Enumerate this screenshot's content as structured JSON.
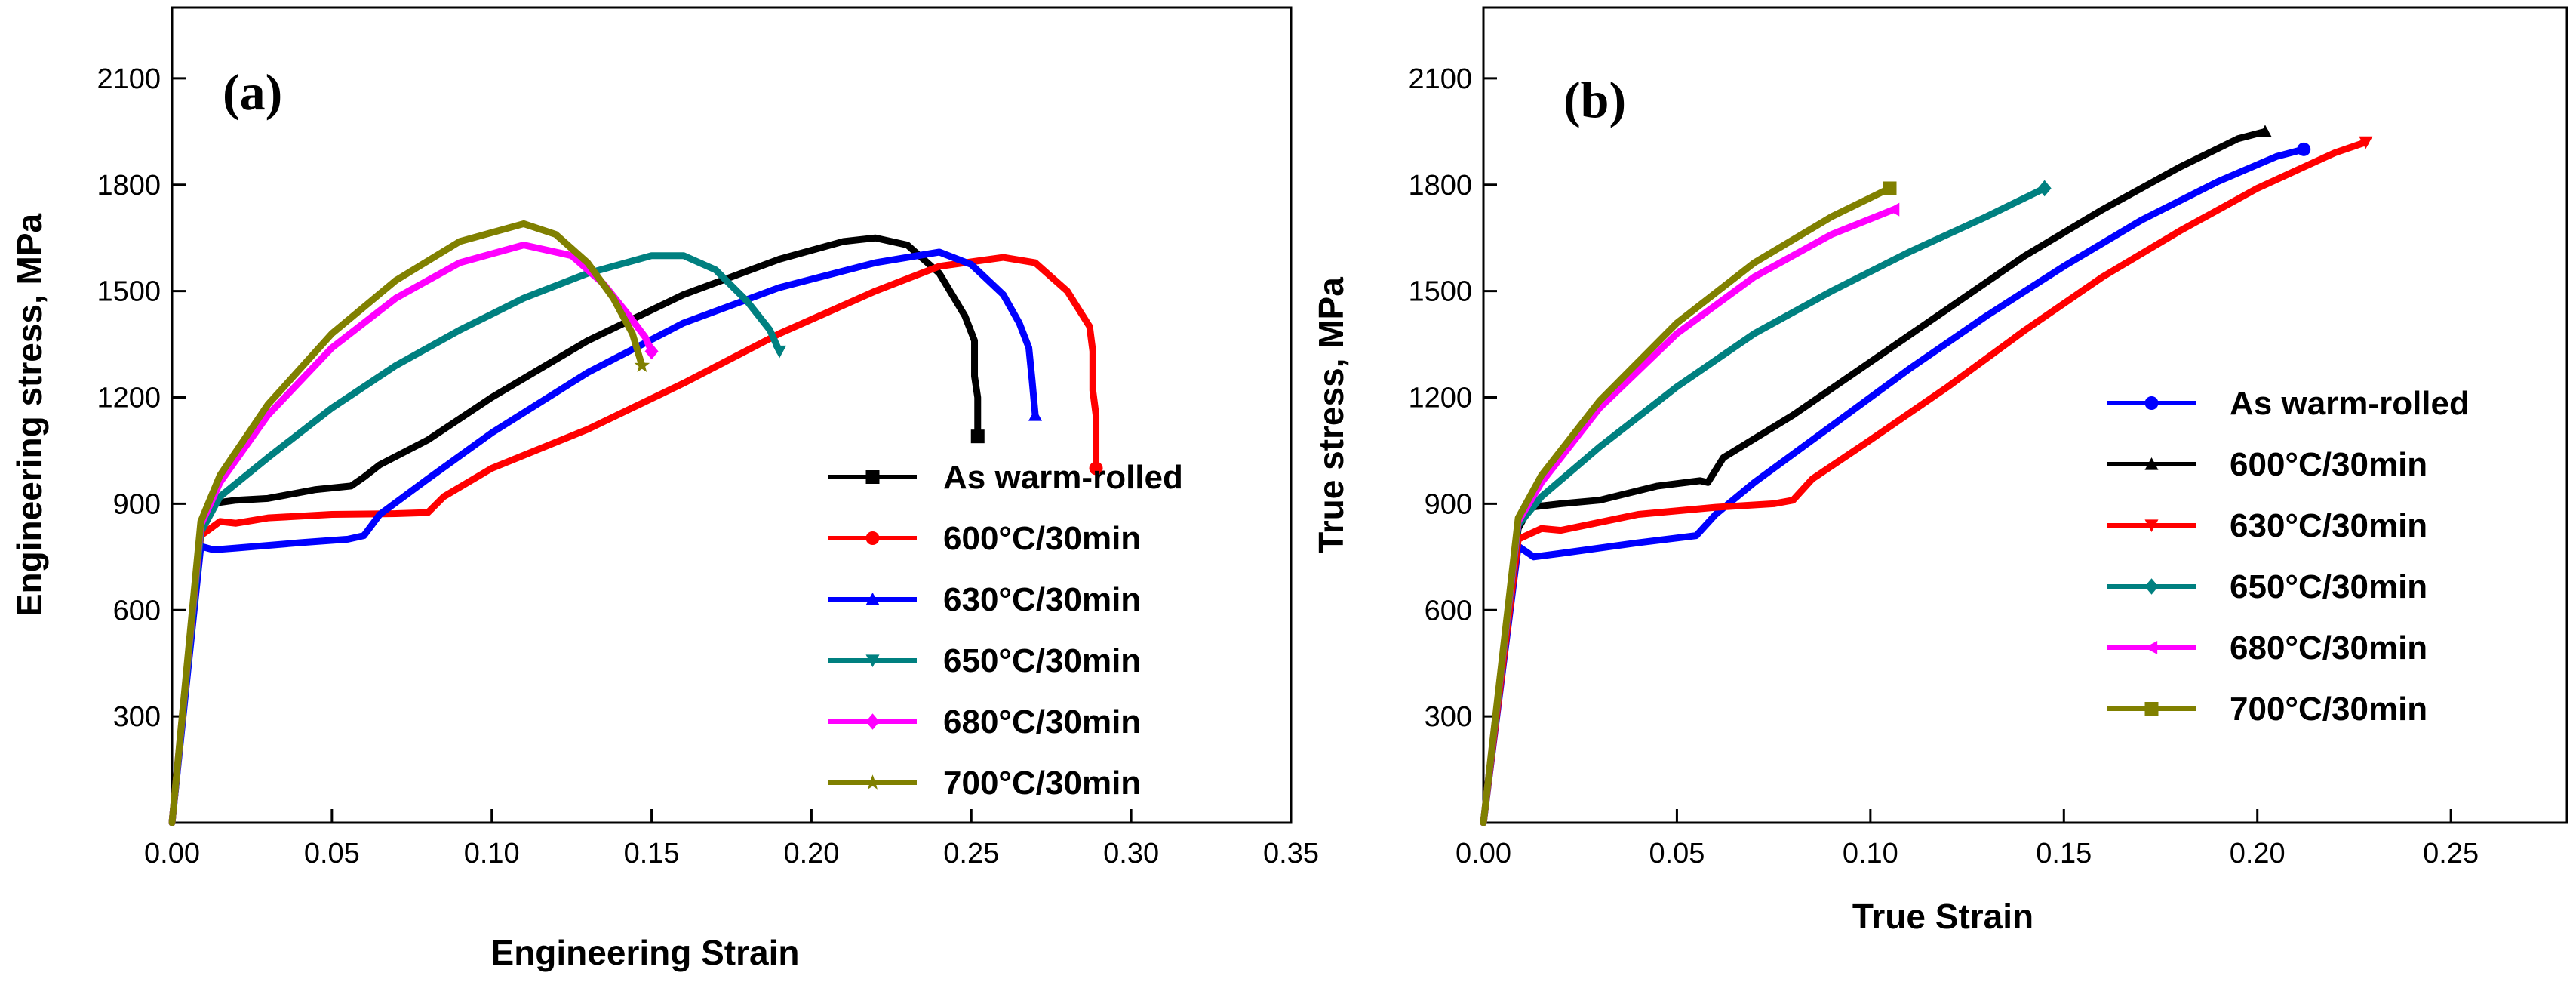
{
  "chart_data": [
    {
      "type": "line",
      "panel_label": "(a)",
      "title": "",
      "xlabel": "Engineering Strain",
      "ylabel": "Engineering stress, MPa",
      "xlim": [
        0,
        0.35
      ],
      "ylim": [
        0,
        2300
      ],
      "xticks": [
        0,
        0.05,
        0.1,
        0.15,
        0.2,
        0.25,
        0.3,
        0.35
      ],
      "xtick_labels": [
        "0.00",
        "0.05",
        "0.10",
        "0.15",
        "0.20",
        "0.25",
        "0.30",
        "0.35"
      ],
      "yticks": [
        300,
        600,
        900,
        1200,
        1500,
        1800,
        2100
      ],
      "ytick_labels": [
        "300",
        "600",
        "900",
        "1200",
        "1500",
        "1800",
        "2100"
      ],
      "legend_position": "lower-right",
      "series": [
        {
          "name": "As warm-rolled",
          "color": "#000000",
          "marker": "square",
          "x": [
            0,
            0.009,
            0.012,
            0.02,
            0.03,
            0.045,
            0.056,
            0.06,
            0.065,
            0.08,
            0.1,
            0.13,
            0.16,
            0.19,
            0.21,
            0.22,
            0.23,
            0.24,
            0.248,
            0.251,
            0.251,
            0.252,
            0.252
          ],
          "y": [
            0,
            820,
            900,
            910,
            915,
            940,
            950,
            975,
            1010,
            1080,
            1200,
            1360,
            1490,
            1590,
            1640,
            1650,
            1630,
            1550,
            1430,
            1360,
            1260,
            1200,
            1090
          ]
        },
        {
          "name": "600°C/30min",
          "color": "#ff0000",
          "marker": "circle",
          "x": [
            0,
            0.009,
            0.015,
            0.02,
            0.03,
            0.05,
            0.07,
            0.08,
            0.085,
            0.1,
            0.13,
            0.16,
            0.19,
            0.22,
            0.24,
            0.26,
            0.27,
            0.28,
            0.287,
            0.288,
            0.288,
            0.289,
            0.289
          ],
          "y": [
            0,
            810,
            850,
            845,
            860,
            870,
            872,
            875,
            920,
            1000,
            1110,
            1240,
            1380,
            1500,
            1570,
            1595,
            1580,
            1500,
            1400,
            1330,
            1220,
            1150,
            1000
          ]
        },
        {
          "name": "630°C/30min",
          "color": "#0000ff",
          "marker": "triangle-up",
          "x": [
            0,
            0.009,
            0.013,
            0.02,
            0.04,
            0.055,
            0.06,
            0.065,
            0.08,
            0.1,
            0.13,
            0.16,
            0.19,
            0.22,
            0.24,
            0.25,
            0.26,
            0.265,
            0.268,
            0.269,
            0.27
          ],
          "y": [
            0,
            780,
            770,
            775,
            790,
            800,
            810,
            870,
            970,
            1100,
            1270,
            1410,
            1510,
            1580,
            1610,
            1575,
            1490,
            1410,
            1340,
            1250,
            1150
          ]
        },
        {
          "name": "650°C/30min",
          "color": "#008080",
          "marker": "triangle-down",
          "x": [
            0,
            0.009,
            0.015,
            0.03,
            0.05,
            0.07,
            0.09,
            0.11,
            0.13,
            0.15,
            0.16,
            0.17,
            0.18,
            0.187,
            0.19
          ],
          "y": [
            0,
            820,
            920,
            1030,
            1170,
            1290,
            1390,
            1480,
            1550,
            1600,
            1600,
            1560,
            1470,
            1390,
            1330
          ]
        },
        {
          "name": "680°C/30min",
          "color": "#ff00ff",
          "marker": "diamond",
          "x": [
            0,
            0.009,
            0.015,
            0.03,
            0.05,
            0.07,
            0.09,
            0.11,
            0.125,
            0.135,
            0.143,
            0.148,
            0.15
          ],
          "y": [
            0,
            840,
            960,
            1150,
            1340,
            1480,
            1580,
            1630,
            1600,
            1520,
            1430,
            1370,
            1330
          ]
        },
        {
          "name": "700°C/30min",
          "color": "#808000",
          "marker": "star",
          "x": [
            0,
            0.009,
            0.015,
            0.03,
            0.05,
            0.07,
            0.09,
            0.11,
            0.12,
            0.13,
            0.138,
            0.144,
            0.147
          ],
          "y": [
            0,
            850,
            980,
            1180,
            1380,
            1530,
            1640,
            1690,
            1660,
            1580,
            1480,
            1380,
            1290
          ]
        }
      ]
    },
    {
      "type": "line",
      "panel_label": "(b)",
      "title": "",
      "xlabel": "True Strain",
      "ylabel": "True stress, MPa",
      "xlim": [
        0,
        0.28
      ],
      "ylim": [
        0,
        2300
      ],
      "xticks": [
        0,
        0.05,
        0.1,
        0.15,
        0.2,
        0.25
      ],
      "xtick_labels": [
        "0.00",
        "0.05",
        "0.10",
        "0.15",
        "0.20",
        "0.25"
      ],
      "yticks": [
        300,
        600,
        900,
        1200,
        1500,
        1800,
        2100
      ],
      "ytick_labels": [
        "300",
        "600",
        "900",
        "1200",
        "1500",
        "1800",
        "2100"
      ],
      "legend_position": "lower-right",
      "series": [
        {
          "name": "As warm-rolled",
          "color": "#0000ff",
          "marker": "circle",
          "x": [
            0,
            0.009,
            0.013,
            0.02,
            0.04,
            0.055,
            0.06,
            0.07,
            0.09,
            0.11,
            0.13,
            0.15,
            0.17,
            0.19,
            0.205,
            0.212
          ],
          "y": [
            0,
            780,
            750,
            760,
            790,
            810,
            870,
            960,
            1120,
            1280,
            1430,
            1570,
            1700,
            1810,
            1880,
            1900
          ]
        },
        {
          "name": "600°C/30min",
          "color": "#000000",
          "marker": "triangle-up",
          "x": [
            0,
            0.009,
            0.012,
            0.02,
            0.03,
            0.045,
            0.056,
            0.058,
            0.062,
            0.08,
            0.1,
            0.12,
            0.14,
            0.16,
            0.18,
            0.195,
            0.202
          ],
          "y": [
            0,
            830,
            890,
            900,
            910,
            950,
            965,
            960,
            1030,
            1150,
            1300,
            1450,
            1600,
            1730,
            1850,
            1930,
            1950
          ]
        },
        {
          "name": "630°C/30min",
          "color": "#ff0000",
          "marker": "triangle-down",
          "x": [
            0,
            0.009,
            0.015,
            0.02,
            0.04,
            0.06,
            0.075,
            0.08,
            0.085,
            0.1,
            0.12,
            0.14,
            0.16,
            0.18,
            0.2,
            0.22,
            0.228
          ],
          "y": [
            0,
            800,
            830,
            825,
            870,
            890,
            900,
            910,
            970,
            1080,
            1230,
            1390,
            1540,
            1670,
            1790,
            1890,
            1920
          ]
        },
        {
          "name": "650°C/30min",
          "color": "#008080",
          "marker": "diamond",
          "x": [
            0,
            0.009,
            0.015,
            0.03,
            0.05,
            0.07,
            0.09,
            0.11,
            0.13,
            0.145
          ],
          "y": [
            0,
            840,
            920,
            1060,
            1230,
            1380,
            1500,
            1610,
            1710,
            1790
          ]
        },
        {
          "name": "680°C/30min",
          "color": "#ff00ff",
          "marker": "triangle-left",
          "x": [
            0,
            0.009,
            0.015,
            0.03,
            0.05,
            0.07,
            0.09,
            0.106
          ],
          "y": [
            0,
            850,
            960,
            1170,
            1380,
            1540,
            1660,
            1730
          ]
        },
        {
          "name": "700°C/30min",
          "color": "#808000",
          "marker": "square",
          "x": [
            0,
            0.009,
            0.015,
            0.03,
            0.05,
            0.07,
            0.09,
            0.105
          ],
          "y": [
            0,
            860,
            980,
            1190,
            1410,
            1580,
            1710,
            1790
          ]
        }
      ]
    }
  ]
}
